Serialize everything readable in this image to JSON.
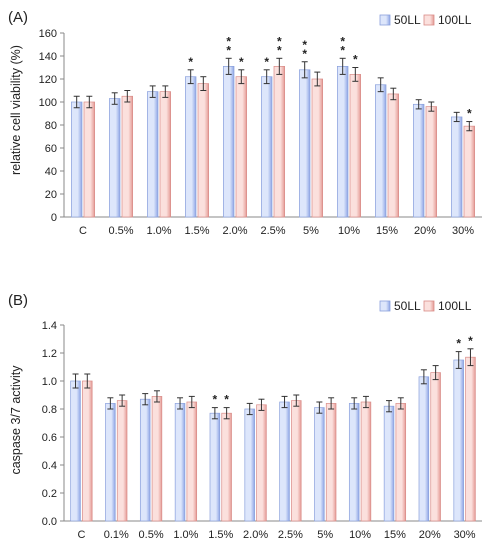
{
  "colors": {
    "series1_light": "#dde6fb",
    "series1_dark": "#8fa6e6",
    "series1_edge": "#8aa0dc",
    "series2_light": "#fbe0dd",
    "series2_dark": "#e59b96",
    "series2_edge": "#d98c88",
    "axis": "#888888",
    "error_bar": "#333333"
  },
  "chart_data": [
    {
      "type": "bar",
      "panel_label": "(A)",
      "ylabel": "relative cell viability (%)",
      "ylim": [
        0,
        160
      ],
      "yticks": [
        "0",
        "20",
        "40",
        "60",
        "80",
        "100",
        "120",
        "140",
        "160"
      ],
      "ytick_values": [
        0,
        20,
        40,
        60,
        80,
        100,
        120,
        140,
        160
      ],
      "grid": false,
      "legend_position": "top-right",
      "categories": [
        "C",
        "0.5%",
        "1.0%",
        "1.5%",
        "2.0%",
        "2.5%",
        "5%",
        "10%",
        "15%",
        "20%",
        "30%"
      ],
      "series": [
        {
          "name": "50LL",
          "values": [
            100,
            103,
            109,
            122,
            131,
            122,
            128,
            131,
            115,
            98,
            87
          ],
          "errors": [
            5,
            5,
            5,
            6,
            7,
            6,
            7,
            7,
            6,
            4,
            4
          ],
          "significance": [
            "",
            "",
            "",
            "*",
            "**",
            "*",
            "**",
            "**",
            "",
            "",
            ""
          ]
        },
        {
          "name": "100LL",
          "values": [
            100,
            105,
            109,
            116,
            122,
            131,
            120,
            124,
            107,
            96,
            79
          ],
          "errors": [
            5,
            5,
            5,
            6,
            6,
            7,
            6,
            6,
            5,
            4,
            4
          ],
          "significance": [
            "",
            "",
            "",
            "",
            "*",
            "**",
            "",
            "*",
            "",
            "",
            "*"
          ]
        }
      ]
    },
    {
      "type": "bar",
      "panel_label": "(B)",
      "ylabel": "caspase 3/7 activity",
      "ylim": [
        0,
        1.4
      ],
      "yticks": [
        "0.0",
        "0.2",
        "0.4",
        "0.6",
        "0.8",
        "1.0",
        "1.2",
        "1.4"
      ],
      "ytick_values": [
        0,
        0.2,
        0.4,
        0.6,
        0.8,
        1.0,
        1.2,
        1.4
      ],
      "grid": false,
      "legend_position": "top-right",
      "categories": [
        "C",
        "0.1%",
        "0.5%",
        "1.0%",
        "1.5%",
        "2.0%",
        "2.5%",
        "5%",
        "10%",
        "15%",
        "20%",
        "30%"
      ],
      "series": [
        {
          "name": "50LL",
          "values": [
            1.0,
            0.84,
            0.87,
            0.84,
            0.77,
            0.8,
            0.85,
            0.81,
            0.84,
            0.82,
            1.03,
            1.15
          ],
          "errors": [
            0.05,
            0.04,
            0.04,
            0.04,
            0.04,
            0.04,
            0.04,
            0.04,
            0.04,
            0.04,
            0.05,
            0.06
          ],
          "significance": [
            "",
            "",
            "",
            "",
            "*",
            "",
            "",
            "",
            "",
            "",
            "",
            "*"
          ]
        },
        {
          "name": "100LL",
          "values": [
            1.0,
            0.86,
            0.89,
            0.85,
            0.77,
            0.83,
            0.86,
            0.84,
            0.85,
            0.84,
            1.06,
            1.17
          ],
          "errors": [
            0.05,
            0.04,
            0.04,
            0.04,
            0.04,
            0.04,
            0.04,
            0.04,
            0.04,
            0.04,
            0.05,
            0.06
          ],
          "significance": [
            "",
            "",
            "",
            "",
            "*",
            "",
            "",
            "",
            "",
            "",
            "",
            "*"
          ]
        }
      ]
    }
  ]
}
